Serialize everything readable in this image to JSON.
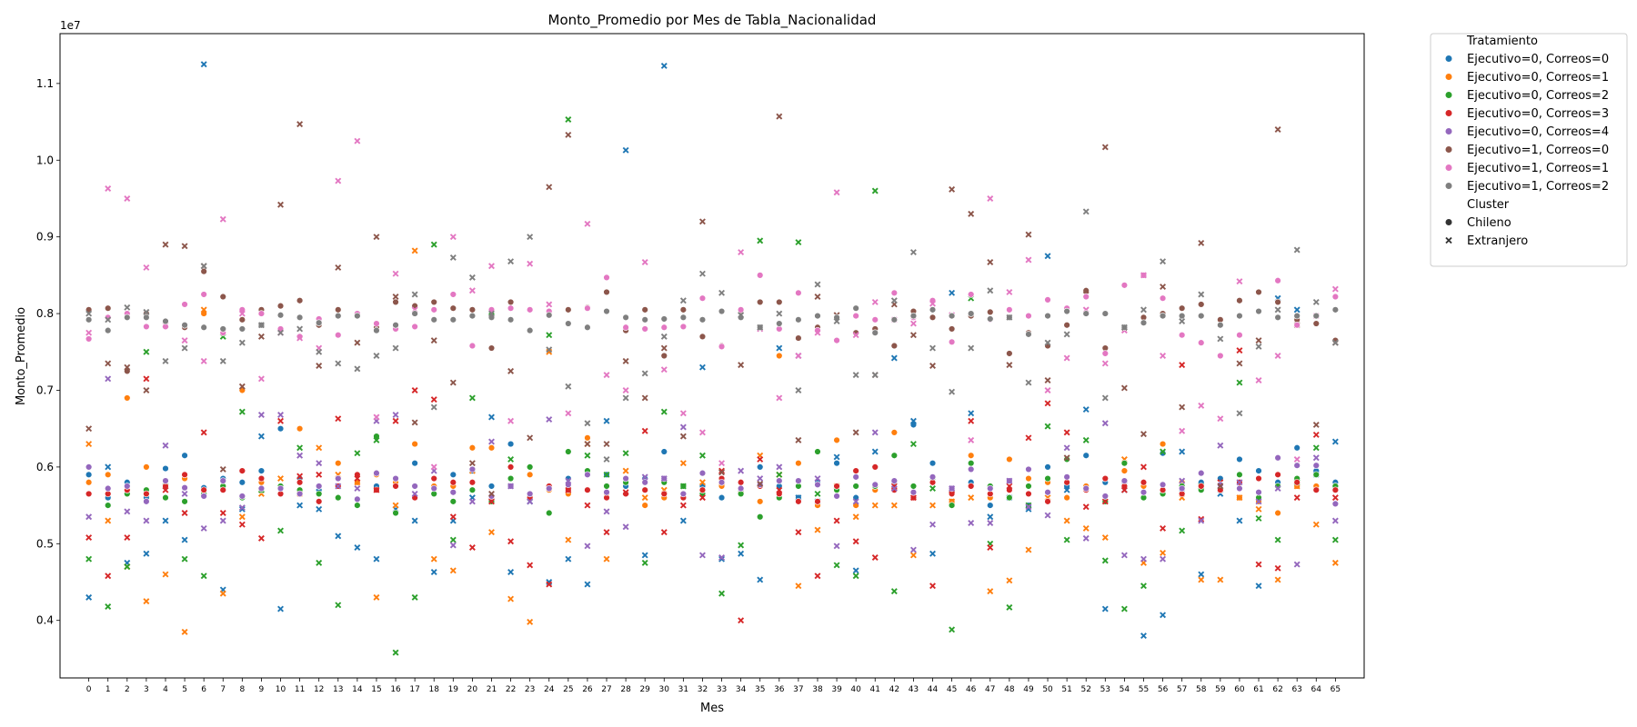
{
  "chart_data": {
    "type": "scatter",
    "title": "Monto_Promedio por Mes de Tabla_Nacionalidad",
    "xlabel": "Mes",
    "ylabel": "Monto_Promedio",
    "y_offset_label": "1e7",
    "x_categories": [
      0,
      1,
      2,
      3,
      4,
      5,
      6,
      7,
      8,
      9,
      10,
      11,
      12,
      13,
      14,
      15,
      16,
      17,
      18,
      19,
      20,
      21,
      22,
      23,
      24,
      25,
      26,
      27,
      28,
      29,
      30,
      31,
      32,
      33,
      34,
      35,
      36,
      37,
      38,
      39,
      40,
      41,
      42,
      43,
      44,
      45,
      46,
      47,
      48,
      49,
      50,
      51,
      52,
      53,
      54,
      55,
      56,
      57,
      58,
      59,
      60,
      61,
      62,
      63,
      64,
      65
    ],
    "xlim": [
      -1.5,
      66.5
    ],
    "ylim": [
      3.25,
      11.65
    ],
    "yticks": [
      4.0,
      5.0,
      6.0,
      7.0,
      8.0,
      9.0,
      10.0,
      11.0
    ],
    "ytick_labels": [
      "0.4",
      "0.5",
      "0.6",
      "0.7",
      "0.8",
      "0.9",
      "1.0",
      "1.1"
    ],
    "legend": {
      "position": "outside-right",
      "hue_title": "Tratamiento",
      "style_title": "Cluster",
      "style_entries": [
        {
          "label": "Chileno",
          "marker": "circle"
        },
        {
          "label": "Extranjero",
          "marker": "x"
        }
      ]
    },
    "series": [
      {
        "name": "Ejecutivo=0, Correos=0",
        "color": "#1f77b4",
        "chileno": [
          5.9,
          5.6,
          5.8,
          5.6,
          5.98,
          6.15,
          5.73,
          5.85,
          5.8,
          5.95,
          6.5,
          5.85,
          5.7,
          5.85,
          5.8,
          5.75,
          5.75,
          6.05,
          5.75,
          5.9,
          5.95,
          5.75,
          6.3,
          5.6,
          5.75,
          5.85,
          5.7,
          5.9,
          5.75,
          5.85,
          6.2,
          5.6,
          5.75,
          5.6,
          5.7,
          6.0,
          5.75,
          5.6,
          5.8,
          6.05,
          5.6,
          6.0,
          5.8,
          6.55,
          6.05,
          5.7,
          5.8,
          5.5,
          5.7,
          5.5,
          6.0,
          5.75,
          6.15,
          5.8,
          5.8,
          5.75,
          6.18,
          5.7,
          5.8,
          5.85,
          6.1,
          5.95,
          5.8,
          6.25,
          5.95,
          5.8
        ],
        "extranjero": [
          4.3,
          6.0,
          4.75,
          4.87,
          5.3,
          5.05,
          11.25,
          4.4,
          5.45,
          6.4,
          4.15,
          5.5,
          5.45,
          5.1,
          4.95,
          4.8,
          5.45,
          5.3,
          4.63,
          5.3,
          5.6,
          6.65,
          4.63,
          5.55,
          4.5,
          4.8,
          4.47,
          6.6,
          10.13,
          4.85,
          11.23,
          5.3,
          7.3,
          4.8,
          4.87,
          4.53,
          7.55,
          5.6,
          5.55,
          6.13,
          4.65,
          6.2,
          7.42,
          6.6,
          4.87,
          8.27,
          6.7,
          5.35,
          5.6,
          5.45,
          8.75,
          5.7,
          6.75,
          4.15,
          5.7,
          3.8,
          4.07,
          6.2,
          4.6,
          5.65,
          5.3,
          4.45,
          8.2,
          8.05,
          5.9,
          6.33
        ]
      },
      {
        "name": "Ejecutivo=0, Correos=1",
        "color": "#ff7f0e",
        "chileno": [
          5.8,
          5.9,
          6.9,
          6.0,
          5.75,
          5.85,
          8.0,
          5.75,
          7.0,
          5.8,
          5.75,
          6.5,
          5.75,
          6.05,
          5.8,
          5.9,
          5.8,
          6.3,
          5.75,
          5.75,
          6.25,
          6.25,
          5.75,
          5.9,
          5.7,
          5.65,
          6.38,
          5.65,
          5.65,
          5.5,
          5.6,
          5.65,
          5.7,
          5.75,
          5.8,
          5.55,
          7.45,
          6.05,
          5.5,
          6.35,
          5.5,
          5.7,
          6.45,
          5.6,
          5.8,
          5.55,
          6.15,
          5.6,
          6.1,
          5.85,
          5.8,
          5.6,
          5.75,
          5.85,
          5.95,
          5.75,
          6.3,
          5.8,
          5.7,
          5.7,
          5.6,
          5.55,
          5.4,
          5.75,
          5.75,
          5.75
        ],
        "extranjero": [
          6.3,
          5.3,
          4.7,
          4.25,
          4.6,
          3.85,
          8.05,
          4.35,
          5.35,
          5.65,
          5.85,
          5.65,
          6.25,
          5.9,
          5.8,
          4.3,
          5.5,
          8.82,
          4.8,
          4.65,
          5.95,
          5.15,
          4.28,
          3.98,
          7.5,
          5.05,
          6.3,
          4.8,
          5.95,
          5.6,
          5.7,
          6.05,
          5.8,
          5.8,
          5.7,
          6.15,
          5.9,
          4.45,
          5.18,
          5.75,
          5.35,
          5.5,
          5.5,
          4.85,
          5.5,
          5.55,
          5.6,
          4.38,
          4.52,
          4.92,
          5.6,
          5.3,
          5.2,
          5.08,
          6.1,
          4.75,
          4.88,
          5.6,
          4.53,
          4.53,
          5.6,
          5.45,
          4.53,
          5.75,
          5.25,
          4.75
        ]
      },
      {
        "name": "Ejecutivo=0, Correos=2",
        "color": "#2ca02c",
        "chileno": [
          5.65,
          5.5,
          5.65,
          5.7,
          5.6,
          5.55,
          5.65,
          5.75,
          5.6,
          5.7,
          5.75,
          5.7,
          5.65,
          5.6,
          5.5,
          6.4,
          5.4,
          5.75,
          5.65,
          5.55,
          5.7,
          5.55,
          5.85,
          6.0,
          5.4,
          6.2,
          5.95,
          5.75,
          5.8,
          5.7,
          5.8,
          5.75,
          5.65,
          5.8,
          5.65,
          5.35,
          5.6,
          5.75,
          6.2,
          5.7,
          5.75,
          5.75,
          6.15,
          5.75,
          5.85,
          5.5,
          6.05,
          5.75,
          5.6,
          5.75,
          5.85,
          6.1,
          5.7,
          5.55,
          6.05,
          5.6,
          5.65,
          5.75,
          5.7,
          5.7,
          5.9,
          5.6,
          5.75,
          5.85,
          5.9,
          5.75
        ],
        "extranjero": [
          4.8,
          4.18,
          4.7,
          7.5,
          5.75,
          4.8,
          4.58,
          7.7,
          6.72,
          5.7,
          5.17,
          6.25,
          4.75,
          4.2,
          6.18,
          6.35,
          3.58,
          4.3,
          8.9,
          5.05,
          6.9,
          8.02,
          6.1,
          5.6,
          7.72,
          10.53,
          6.15,
          5.9,
          6.18,
          4.75,
          6.72,
          5.75,
          6.15,
          4.35,
          4.98,
          8.95,
          5.9,
          8.93,
          5.65,
          4.72,
          4.58,
          9.6,
          4.38,
          6.3,
          5.72,
          3.88,
          8.2,
          5.0,
          4.17,
          5.5,
          6.53,
          5.05,
          6.35,
          4.78,
          4.15,
          4.45,
          6.2,
          5.17,
          5.75,
          5.75,
          7.1,
          5.33,
          5.05,
          5.8,
          6.25,
          5.05
        ]
      },
      {
        "name": "Ejecutivo=0, Correos=3",
        "color": "#d62728",
        "chileno": [
          5.65,
          5.65,
          5.7,
          5.65,
          5.75,
          5.9,
          5.7,
          5.7,
          5.95,
          5.85,
          5.65,
          5.8,
          5.55,
          5.75,
          5.9,
          5.7,
          5.75,
          5.6,
          5.85,
          5.8,
          5.8,
          5.6,
          6.0,
          5.6,
          5.75,
          5.7,
          5.7,
          5.6,
          5.65,
          5.7,
          5.65,
          5.6,
          5.7,
          5.85,
          5.8,
          5.75,
          5.65,
          5.55,
          5.55,
          5.75,
          5.95,
          6.0,
          5.7,
          5.6,
          5.8,
          5.65,
          5.75,
          5.65,
          5.7,
          5.65,
          5.55,
          5.8,
          5.7,
          5.85,
          5.75,
          5.8,
          5.7,
          5.65,
          5.75,
          5.7,
          5.8,
          5.85,
          5.9,
          5.8,
          5.7,
          5.7
        ],
        "extranjero": [
          5.08,
          4.58,
          5.08,
          7.15,
          5.7,
          5.4,
          6.45,
          5.4,
          5.25,
          5.07,
          6.6,
          5.88,
          5.9,
          6.63,
          5.85,
          5.7,
          6.6,
          7.0,
          6.88,
          5.35,
          4.95,
          5.55,
          5.03,
          4.72,
          4.47,
          5.7,
          5.5,
          5.15,
          5.67,
          6.47,
          5.15,
          5.5,
          5.6,
          5.95,
          4.0,
          6.1,
          5.7,
          5.15,
          4.58,
          5.3,
          5.03,
          4.82,
          5.75,
          5.6,
          4.45,
          5.7,
          6.6,
          4.95,
          5.75,
          6.38,
          6.83,
          6.45,
          5.48,
          5.55,
          5.7,
          6.0,
          5.2,
          7.33,
          5.32,
          5.8,
          7.52,
          4.73,
          4.68,
          5.6,
          6.42,
          5.6
        ]
      },
      {
        "name": "Ejecutivo=0, Correos=4",
        "color": "#9467bd",
        "chileno": [
          6.0,
          5.72,
          5.75,
          5.55,
          5.82,
          5.73,
          5.62,
          5.82,
          5.62,
          5.72,
          5.72,
          5.65,
          5.75,
          5.85,
          5.58,
          5.92,
          5.85,
          5.75,
          5.72,
          5.67,
          5.97,
          5.62,
          5.75,
          5.65,
          5.72,
          5.77,
          5.9,
          5.67,
          5.85,
          5.8,
          5.85,
          5.65,
          5.92,
          5.8,
          5.72,
          5.77,
          5.82,
          5.82,
          5.77,
          5.62,
          5.87,
          5.77,
          5.82,
          5.67,
          5.87,
          5.72,
          5.97,
          5.72,
          5.82,
          5.97,
          5.67,
          5.87,
          5.72,
          5.62,
          5.82,
          5.67,
          5.77,
          5.72,
          5.92,
          5.77,
          5.72,
          5.67,
          6.12,
          6.02,
          6.02,
          5.52
        ],
        "extranjero": [
          5.35,
          7.15,
          5.42,
          5.3,
          6.28,
          5.65,
          5.2,
          5.3,
          5.47,
          6.68,
          6.68,
          6.15,
          6.05,
          5.75,
          5.72,
          6.6,
          6.68,
          5.65,
          5.95,
          4.98,
          5.55,
          6.33,
          5.75,
          5.55,
          6.62,
          5.82,
          4.97,
          5.42,
          5.22,
          5.87,
          5.85,
          6.52,
          4.85,
          4.82,
          5.95,
          5.85,
          6.0,
          7.45,
          5.85,
          4.97,
          5.55,
          6.45,
          5.72,
          4.92,
          5.25,
          5.72,
          5.27,
          5.27,
          5.82,
          5.48,
          5.37,
          6.25,
          5.07,
          6.57,
          4.85,
          4.8,
          4.8,
          5.82,
          5.3,
          6.28,
          5.8,
          5.55,
          5.72,
          4.73,
          6.12,
          5.3
        ]
      },
      {
        "name": "Ejecutivo=1, Correos=0",
        "color": "#8c564b",
        "chileno": [
          8.05,
          8.07,
          7.25,
          8.0,
          7.9,
          7.82,
          8.55,
          8.22,
          7.92,
          8.05,
          8.1,
          8.17,
          7.85,
          8.05,
          8.0,
          7.82,
          8.15,
          8.1,
          8.15,
          8.07,
          8.05,
          7.55,
          8.15,
          8.05,
          8.0,
          8.05,
          8.08,
          8.28,
          7.78,
          8.05,
          7.45,
          8.05,
          7.7,
          7.58,
          8.03,
          8.15,
          8.15,
          7.68,
          7.82,
          7.65,
          7.75,
          7.8,
          7.58,
          8.03,
          7.95,
          7.8,
          7.97,
          8.02,
          7.48,
          7.75,
          7.58,
          7.85,
          8.3,
          7.55,
          7.8,
          7.95,
          8.0,
          8.07,
          8.12,
          7.92,
          8.17,
          8.28,
          8.15,
          7.92,
          7.87,
          7.65
        ],
        "extranjero": [
          6.5,
          7.35,
          7.3,
          7.0,
          8.9,
          8.88,
          8.62,
          5.97,
          7.05,
          7.7,
          9.42,
          10.47,
          7.32,
          8.6,
          7.62,
          9.0,
          8.22,
          6.58,
          7.65,
          7.1,
          6.05,
          5.65,
          7.25,
          6.38,
          9.65,
          10.33,
          6.3,
          6.3,
          7.38,
          6.9,
          7.55,
          6.4,
          9.2,
          5.93,
          7.33,
          5.78,
          10.57,
          6.35,
          8.22,
          7.98,
          6.45,
          7.2,
          8.12,
          7.72,
          7.32,
          9.62,
          9.3,
          8.67,
          7.33,
          9.03,
          7.13,
          6.12,
          8.25,
          10.17,
          7.03,
          6.43,
          8.35,
          6.78,
          8.92,
          5.75,
          7.35,
          7.65,
          10.4,
          7.85,
          6.55,
          7.62
        ]
      },
      {
        "name": "Ejecutivo=1, Correos=1",
        "color": "#e377c2",
        "chileno": [
          7.67,
          7.95,
          8.0,
          7.83,
          7.83,
          8.12,
          8.25,
          7.75,
          8.05,
          8.0,
          7.8,
          7.7,
          7.93,
          7.72,
          8.0,
          7.87,
          7.8,
          7.83,
          8.05,
          8.25,
          7.58,
          8.05,
          8.07,
          8.05,
          8.03,
          7.87,
          8.07,
          8.47,
          7.82,
          7.8,
          7.82,
          7.83,
          8.2,
          7.57,
          8.05,
          8.5,
          7.8,
          8.27,
          7.78,
          7.65,
          7.97,
          7.92,
          8.27,
          7.95,
          8.17,
          7.63,
          8.25,
          7.92,
          8.05,
          7.97,
          8.18,
          8.07,
          8.22,
          7.48,
          8.37,
          8.5,
          8.2,
          7.72,
          7.62,
          7.45,
          7.72,
          8.03,
          8.43,
          7.85,
          7.97,
          8.22
        ],
        "extranjero": [
          7.75,
          9.63,
          9.5,
          8.6,
          7.85,
          7.65,
          7.38,
          9.23,
          8.0,
          7.15,
          7.75,
          7.68,
          7.55,
          9.73,
          10.25,
          6.65,
          8.52,
          8.05,
          6.0,
          9.0,
          8.3,
          8.62,
          6.6,
          8.65,
          8.12,
          6.7,
          9.17,
          7.2,
          7.0,
          8.67,
          7.27,
          6.7,
          6.45,
          6.05,
          8.8,
          7.8,
          6.9,
          7.45,
          7.75,
          9.58,
          7.72,
          8.15,
          7.92,
          7.87,
          8.13,
          7.98,
          6.35,
          9.5,
          8.28,
          8.7,
          7.0,
          7.42,
          8.05,
          7.35,
          7.78,
          8.5,
          7.45,
          6.47,
          6.8,
          6.63,
          8.42,
          7.13,
          7.45,
          6.1,
          7.97,
          8.32
        ]
      },
      {
        "name": "Ejecutivo=1, Correos=2",
        "color": "#7f7f7f",
        "chileno": [
          7.92,
          7.78,
          7.95,
          7.95,
          7.9,
          7.85,
          7.82,
          7.8,
          7.8,
          7.85,
          7.98,
          7.95,
          7.88,
          7.97,
          7.97,
          7.78,
          7.85,
          8.0,
          7.92,
          7.92,
          7.97,
          7.95,
          7.92,
          7.78,
          7.98,
          7.87,
          7.82,
          8.03,
          7.95,
          7.92,
          7.93,
          7.95,
          7.92,
          8.03,
          7.95,
          7.82,
          7.87,
          7.92,
          7.97,
          7.95,
          8.07,
          7.75,
          7.92,
          7.97,
          8.05,
          7.97,
          8.0,
          7.93,
          7.95,
          7.73,
          7.97,
          8.03,
          8.0,
          8.0,
          7.82,
          7.88,
          7.97,
          7.97,
          7.97,
          7.85,
          7.97,
          8.03,
          7.95,
          7.97,
          7.97,
          8.05
        ],
        "extranjero": [
          8.0,
          7.92,
          8.08,
          8.02,
          7.38,
          7.55,
          8.62,
          7.38,
          7.62,
          7.85,
          7.75,
          7.8,
          7.5,
          7.35,
          7.28,
          7.45,
          7.55,
          8.25,
          6.78,
          8.73,
          8.47,
          8.0,
          8.68,
          9.0,
          7.53,
          7.05,
          6.57,
          6.1,
          6.9,
          7.22,
          7.7,
          8.17,
          8.52,
          8.27,
          7.98,
          7.82,
          8.0,
          7.0,
          8.38,
          7.9,
          7.2,
          7.2,
          8.17,
          8.8,
          7.55,
          6.98,
          7.55,
          8.3,
          7.95,
          7.1,
          7.62,
          7.73,
          9.33,
          6.9,
          7.82,
          8.05,
          8.68,
          7.9,
          8.25,
          7.67,
          6.7,
          7.57,
          8.05,
          8.83,
          8.15,
          7.62
        ]
      }
    ]
  }
}
